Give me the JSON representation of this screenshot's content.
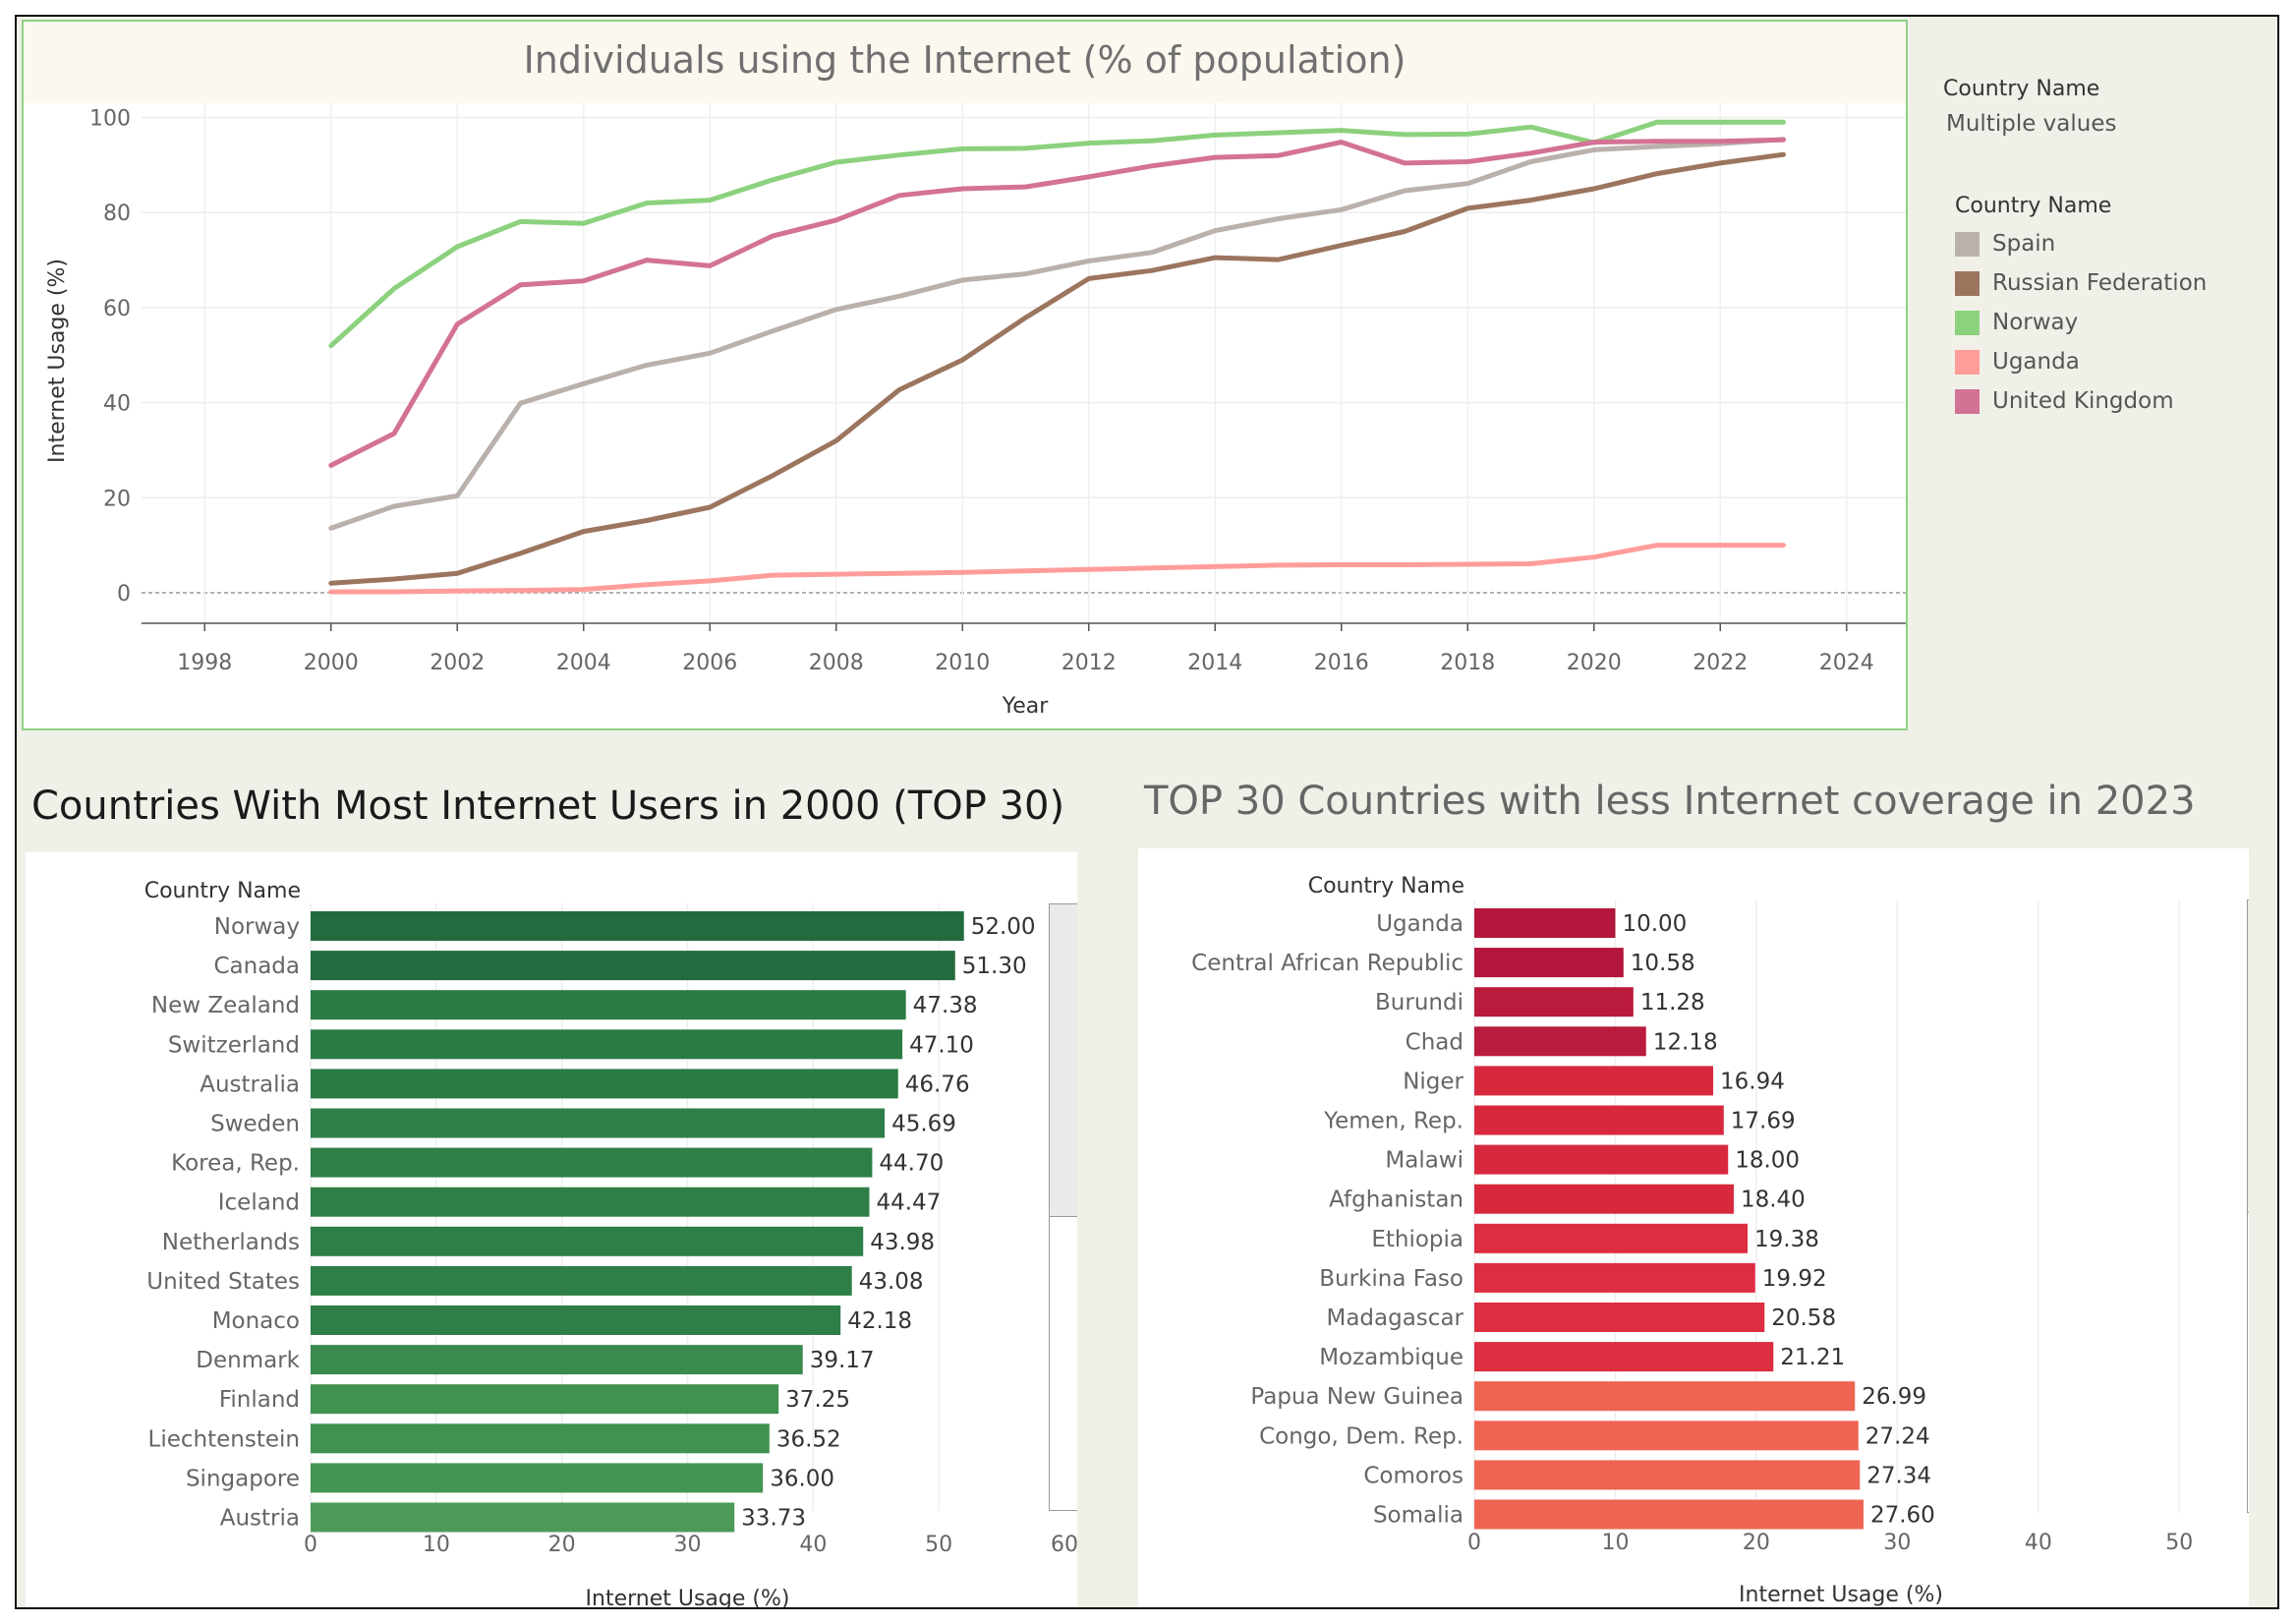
{
  "filter": {
    "title": "Country Name",
    "value": "Multiple values"
  },
  "legend": {
    "title": "Country Name",
    "items": [
      {
        "label": "Spain",
        "color": "#bab0ac"
      },
      {
        "label": "Russian Federation",
        "color": "#9c755f"
      },
      {
        "label": "Norway",
        "color": "#8cd17d"
      },
      {
        "label": "Uganda",
        "color": "#ff9d9a"
      },
      {
        "label": "United Kingdom",
        "color": "#d37295"
      }
    ]
  },
  "chart_data": [
    {
      "type": "line",
      "title": "Individuals using the Internet (% of population)",
      "xlabel": "Year",
      "ylabel": "Internet Usage (%)",
      "xlim": [
        1997,
        2025
      ],
      "ylim": [
        -6,
        103
      ],
      "xticks": [
        1998,
        2000,
        2002,
        2004,
        2006,
        2008,
        2010,
        2012,
        2014,
        2016,
        2018,
        2020,
        2022,
        2024
      ],
      "yticks": [
        0,
        20,
        40,
        60,
        80,
        100
      ],
      "grid": true,
      "x": [
        2000,
        2001,
        2002,
        2003,
        2004,
        2005,
        2006,
        2007,
        2008,
        2009,
        2010,
        2011,
        2012,
        2013,
        2014,
        2015,
        2016,
        2017,
        2018,
        2019,
        2020,
        2021,
        2022,
        2023
      ],
      "series": [
        {
          "name": "Spain",
          "color": "#bab0ac",
          "values": [
            13.6,
            18.2,
            20.4,
            39.9,
            44.0,
            47.9,
            50.4,
            55.1,
            59.6,
            62.4,
            65.8,
            67.1,
            69.8,
            71.6,
            76.2,
            78.7,
            80.6,
            84.6,
            86.1,
            90.7,
            93.2,
            93.9,
            94.5,
            95.4
          ]
        },
        {
          "name": "Russian Federation",
          "color": "#9c755f",
          "values": [
            2.0,
            2.9,
            4.1,
            8.3,
            12.9,
            15.2,
            18.0,
            24.7,
            32.0,
            42.7,
            49.0,
            57.9,
            66.1,
            67.8,
            70.5,
            70.1,
            73.1,
            76.0,
            80.9,
            82.6,
            85.0,
            88.2,
            90.4,
            92.2
          ]
        },
        {
          "name": "Norway",
          "color": "#8cd17d",
          "values": [
            52.0,
            64.0,
            72.8,
            78.1,
            77.7,
            82.0,
            82.6,
            86.9,
            90.6,
            92.1,
            93.4,
            93.5,
            94.6,
            95.1,
            96.3,
            96.8,
            97.3,
            96.4,
            96.5,
            98.0,
            94.7,
            99.0,
            99.0,
            99.0
          ]
        },
        {
          "name": "Uganda",
          "color": "#ff9d9a",
          "values": [
            0.2,
            0.2,
            0.4,
            0.5,
            0.7,
            1.7,
            2.5,
            3.7,
            3.9,
            4.1,
            4.3,
            4.6,
            4.9,
            5.2,
            5.5,
            5.8,
            5.9,
            5.9,
            6.0,
            6.1,
            7.5,
            10.0,
            10.0,
            10.0
          ]
        },
        {
          "name": "United Kingdom",
          "color": "#d37295",
          "values": [
            26.8,
            33.5,
            56.5,
            64.8,
            65.6,
            70.0,
            68.8,
            75.1,
            78.4,
            83.6,
            85.0,
            85.4,
            87.5,
            89.8,
            91.6,
            92.0,
            94.8,
            90.4,
            90.7,
            92.5,
            94.8,
            95.0,
            95.0,
            95.3
          ]
        }
      ]
    },
    {
      "type": "bar",
      "orientation": "horizontal",
      "title": "Countries With Most Internet Users in 2000 (TOP 30)",
      "category_header": "Country Name",
      "xlabel": "Internet Usage (%)",
      "xlim": [
        0,
        60
      ],
      "xticks": [
        0,
        10,
        20,
        30,
        40,
        50,
        60
      ],
      "categories": [
        "Norway",
        "Canada",
        "New Zealand",
        "Switzerland",
        "Australia",
        "Sweden",
        "Korea, Rep.",
        "Iceland",
        "Netherlands",
        "United States",
        "Monaco",
        "Denmark",
        "Finland",
        "Liechtenstein",
        "Singapore",
        "Austria"
      ],
      "values": [
        52.0,
        51.3,
        47.38,
        47.1,
        46.76,
        45.69,
        44.7,
        44.47,
        43.98,
        43.08,
        42.18,
        39.17,
        37.25,
        36.52,
        36.0,
        33.73
      ],
      "labels": [
        "52.00",
        "51.30",
        "47.38",
        "47.10",
        "46.76",
        "45.69",
        "44.70",
        "44.47",
        "43.98",
        "43.08",
        "42.18",
        "39.17",
        "37.25",
        "36.52",
        "36.00",
        "33.73"
      ],
      "colors": [
        "#236b3e",
        "#236b3e",
        "#2a7b43",
        "#2a7b43",
        "#2a7b43",
        "#2e7f47",
        "#2e7f47",
        "#2e7f47",
        "#2e7f47",
        "#2e7f47",
        "#2e7f47",
        "#3a8a4d",
        "#419150",
        "#419150",
        "#449552",
        "#4c9a58"
      ]
    },
    {
      "type": "bar",
      "orientation": "horizontal",
      "title": "TOP 30 Countries with less Internet coverage in 2023",
      "category_header": "Country Name",
      "xlabel": "Internet Usage (%)",
      "xlim": [
        0,
        52
      ],
      "xticks": [
        0,
        10,
        20,
        30,
        40,
        50
      ],
      "categories": [
        "Uganda",
        "Central African Republic",
        "Burundi",
        "Chad",
        "Niger",
        "Yemen, Rep.",
        "Malawi",
        "Afghanistan",
        "Ethiopia",
        "Burkina Faso",
        "Madagascar",
        "Mozambique",
        "Papua New Guinea",
        "Congo, Dem. Rep.",
        "Comoros",
        "Somalia"
      ],
      "values": [
        10.0,
        10.58,
        11.28,
        12.18,
        16.94,
        17.69,
        18.0,
        18.4,
        19.38,
        19.92,
        20.58,
        21.21,
        26.99,
        27.24,
        27.34,
        27.6
      ],
      "labels": [
        "10.00",
        "10.58",
        "11.28",
        "12.18",
        "16.94",
        "17.69",
        "18.00",
        "18.40",
        "19.38",
        "19.92",
        "20.58",
        "21.21",
        "26.99",
        "27.24",
        "27.34",
        "27.60"
      ],
      "colors": [
        "#b3163a",
        "#b3163a",
        "#ba1a3c",
        "#ba1a3c",
        "#d8283d",
        "#d8283d",
        "#d8283d",
        "#d8283d",
        "#dd2d40",
        "#dd2d40",
        "#dd2d40",
        "#dd2d40",
        "#ee6352",
        "#ee6352",
        "#ee6352",
        "#ee6352"
      ]
    }
  ]
}
